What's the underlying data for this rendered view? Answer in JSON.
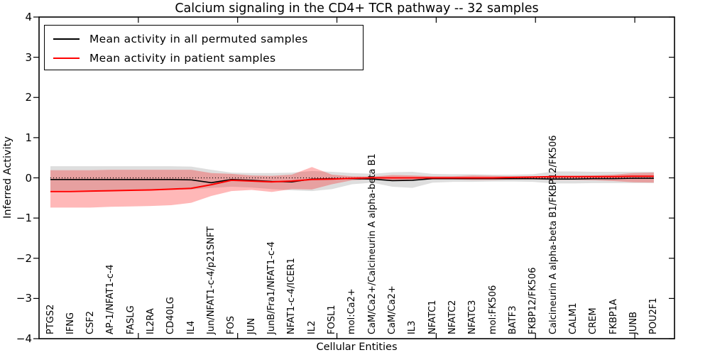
{
  "chart_data": {
    "type": "line",
    "title": "Calcium signaling in the CD4+ TCR pathway -- 32 samples",
    "xlabel": "Cellular Entities",
    "ylabel": "Inferred Activity",
    "ylim": [
      -4,
      4
    ],
    "xlim": [
      0,
      32
    ],
    "grid": false,
    "legend_position": "upper left",
    "y_tick_labels": [
      "4",
      "3",
      "2",
      "1",
      "0",
      "−1",
      "−2",
      "−3",
      "−4"
    ],
    "y_tick_values": [
      4,
      3,
      2,
      1,
      0,
      -1,
      -2,
      -3,
      -4
    ],
    "x_tick_values": [
      5,
      10,
      15,
      20,
      25,
      30
    ],
    "categories": [
      "PTGS2",
      "IFNG",
      "CSF2",
      "AP-1/NFAT1-c-4",
      "FASLG",
      "IL2RA",
      "CD40LG",
      "IL4",
      "Jun/NFAT1-c-4/p21SNFT",
      "FOS",
      "JUN",
      "JunB/Fra1/NFAT1-c-4",
      "NFAT1-c-4/ICER1",
      "IL2",
      "FOSL1",
      "mol:Ca2+",
      "CaM/Ca2+/Calcineurin A alpha-beta B1",
      "CaM/Ca2+",
      "IL3",
      "NFATC1",
      "NFATC2",
      "NFATC3",
      "mol:FK506",
      "BATF3",
      "FKBP12/FK506",
      "Calcineurin A alpha-beta B1/FKBP12/FK506",
      "CALM1",
      "CREM",
      "FKBP1A",
      "JUNB",
      "POU2F1"
    ],
    "series": [
      {
        "name": "Mean activity in all permuted samples",
        "color": "#000000",
        "band_fill": "rgba(0,0,0,0.13)",
        "values": [
          -0.04,
          -0.04,
          -0.04,
          -0.04,
          -0.04,
          -0.04,
          -0.04,
          -0.05,
          -0.12,
          -0.04,
          -0.06,
          -0.09,
          -0.1,
          -0.03,
          -0.02,
          -0.02,
          -0.03,
          -0.07,
          -0.06,
          -0.02,
          -0.02,
          -0.02,
          -0.02,
          -0.02,
          -0.02,
          -0.03,
          -0.03,
          -0.02,
          -0.02,
          -0.01,
          -0.01
        ],
        "band_upper": [
          0.29,
          0.29,
          0.29,
          0.29,
          0.29,
          0.29,
          0.29,
          0.28,
          0.2,
          0.13,
          0.12,
          0.12,
          0.13,
          0.17,
          0.15,
          0.12,
          0.1,
          0.14,
          0.15,
          0.1,
          0.09,
          0.09,
          0.08,
          0.08,
          0.09,
          0.16,
          0.16,
          0.15,
          0.15,
          0.15,
          0.15
        ],
        "band_lower": [
          -0.31,
          -0.31,
          -0.31,
          -0.31,
          -0.31,
          -0.3,
          -0.3,
          -0.29,
          -0.25,
          -0.22,
          -0.24,
          -0.28,
          -0.31,
          -0.33,
          -0.28,
          -0.16,
          -0.12,
          -0.22,
          -0.25,
          -0.12,
          -0.1,
          -0.1,
          -0.09,
          -0.09,
          -0.1,
          -0.14,
          -0.14,
          -0.13,
          -0.13,
          -0.13,
          -0.13
        ]
      },
      {
        "name": "Mean activity in patient samples",
        "color": "#ff0000",
        "band_fill": "rgba(255,0,0,0.28)",
        "values": [
          -0.34,
          -0.34,
          -0.33,
          -0.32,
          -0.31,
          -0.3,
          -0.28,
          -0.26,
          -0.17,
          -0.06,
          -0.08,
          -0.1,
          -0.08,
          -0.04,
          -0.03,
          -0.01,
          0.0,
          0.0,
          0.0,
          0.0,
          0.0,
          0.0,
          0.0,
          0.01,
          0.02,
          0.03,
          0.03,
          0.03,
          0.03,
          0.04,
          0.04
        ],
        "band_upper": [
          0.19,
          0.19,
          0.19,
          0.2,
          0.2,
          0.2,
          0.2,
          0.2,
          0.12,
          0.1,
          0.06,
          0.05,
          0.08,
          0.27,
          0.08,
          0.04,
          0.03,
          0.07,
          0.06,
          0.04,
          0.04,
          0.06,
          0.05,
          0.04,
          0.04,
          0.05,
          0.05,
          0.06,
          0.08,
          0.12,
          0.13
        ],
        "band_lower": [
          -0.74,
          -0.74,
          -0.74,
          -0.72,
          -0.71,
          -0.7,
          -0.68,
          -0.62,
          -0.45,
          -0.33,
          -0.3,
          -0.35,
          -0.28,
          -0.29,
          -0.16,
          -0.06,
          -0.04,
          -0.06,
          -0.06,
          -0.04,
          -0.04,
          -0.05,
          -0.05,
          -0.04,
          -0.04,
          -0.05,
          -0.05,
          -0.06,
          -0.08,
          -0.11,
          -0.12
        ]
      }
    ],
    "reference_line": {
      "y": 0,
      "style": "dotted",
      "color": "#000000"
    }
  },
  "legend": {
    "items": [
      {
        "label": "Mean activity in all permuted samples",
        "color": "#000000"
      },
      {
        "label": "Mean activity in patient samples",
        "color": "#ff0000"
      }
    ]
  }
}
